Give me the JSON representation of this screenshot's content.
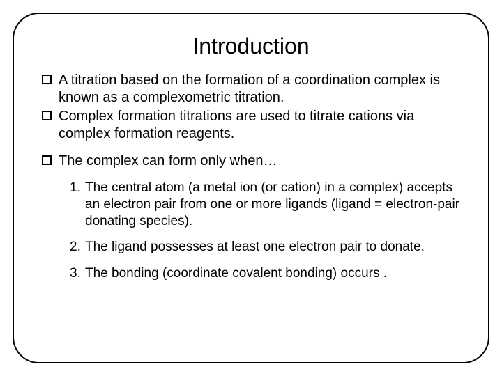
{
  "slide": {
    "title": "Introduction",
    "title_fontsize": 32,
    "body_fontsize": 20,
    "list_fontsize": 19,
    "text_color": "#000000",
    "background_color": "#ffffff",
    "border_color": "#000000",
    "border_radius": 38,
    "bullets_group1": [
      "A titration based on the formation of a coordination complex is known as a complexometric titration.",
      "Complex formation titrations are used to titrate cations via complex formation reagents."
    ],
    "bullets_group2": [
      "The complex can form only when…"
    ],
    "numbered": [
      {
        "n": "1.",
        "text": "The central atom (a metal ion (or cation) in a complex) accepts an electron pair from one or more ligands (ligand = electron-pair donating species)."
      },
      {
        "n": "2.",
        "text": "The ligand possesses at least one electron pair to donate."
      },
      {
        "n": "3.",
        "text": "The bonding (coordinate covalent bonding) occurs ."
      }
    ]
  }
}
